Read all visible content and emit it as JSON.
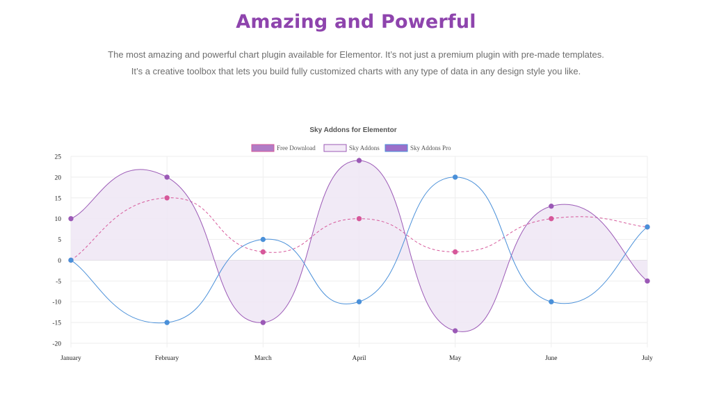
{
  "hero": {
    "title": "Amazing and Powerful",
    "description_line1": "The most amazing and powerful chart plugin available for Elementor. It’s not just a premium plugin with pre-made templates.",
    "description_line2": "It’s a creative toolbox that lets you build fully customized charts with any type of data in any design style you like."
  },
  "chart_data": {
    "type": "line",
    "title": "Sky Addons for Elementor",
    "categories": [
      "January",
      "February",
      "March",
      "April",
      "May",
      "June",
      "July"
    ],
    "ylim": [
      -20,
      25
    ],
    "yticks": [
      25,
      20,
      15,
      10,
      5,
      0,
      -5,
      -10,
      -15,
      -20
    ],
    "grid": true,
    "legend_position": "top",
    "series": [
      {
        "name": "Free Download",
        "values": [
          0,
          15,
          2,
          10,
          2,
          10,
          8
        ],
        "color": "#d6589a",
        "style": "dashed",
        "fill": false
      },
      {
        "name": "Sky Addons",
        "values": [
          10,
          20,
          -15,
          24,
          -17,
          13,
          -5
        ],
        "color": "#9b59b6",
        "style": "solid",
        "fill": true,
        "fill_color": "#efe6f5"
      },
      {
        "name": "Sky Addons Pro",
        "values": [
          0,
          -15,
          5,
          -10,
          20,
          -10,
          8
        ],
        "color": "#4a90d9",
        "style": "solid",
        "fill": false
      }
    ],
    "legend_swatches": {
      "Free Download": "#b07cc6",
      "Sky Addons": "#f3eaf7",
      "Sky Addons Pro": "#9b6fc9"
    }
  }
}
